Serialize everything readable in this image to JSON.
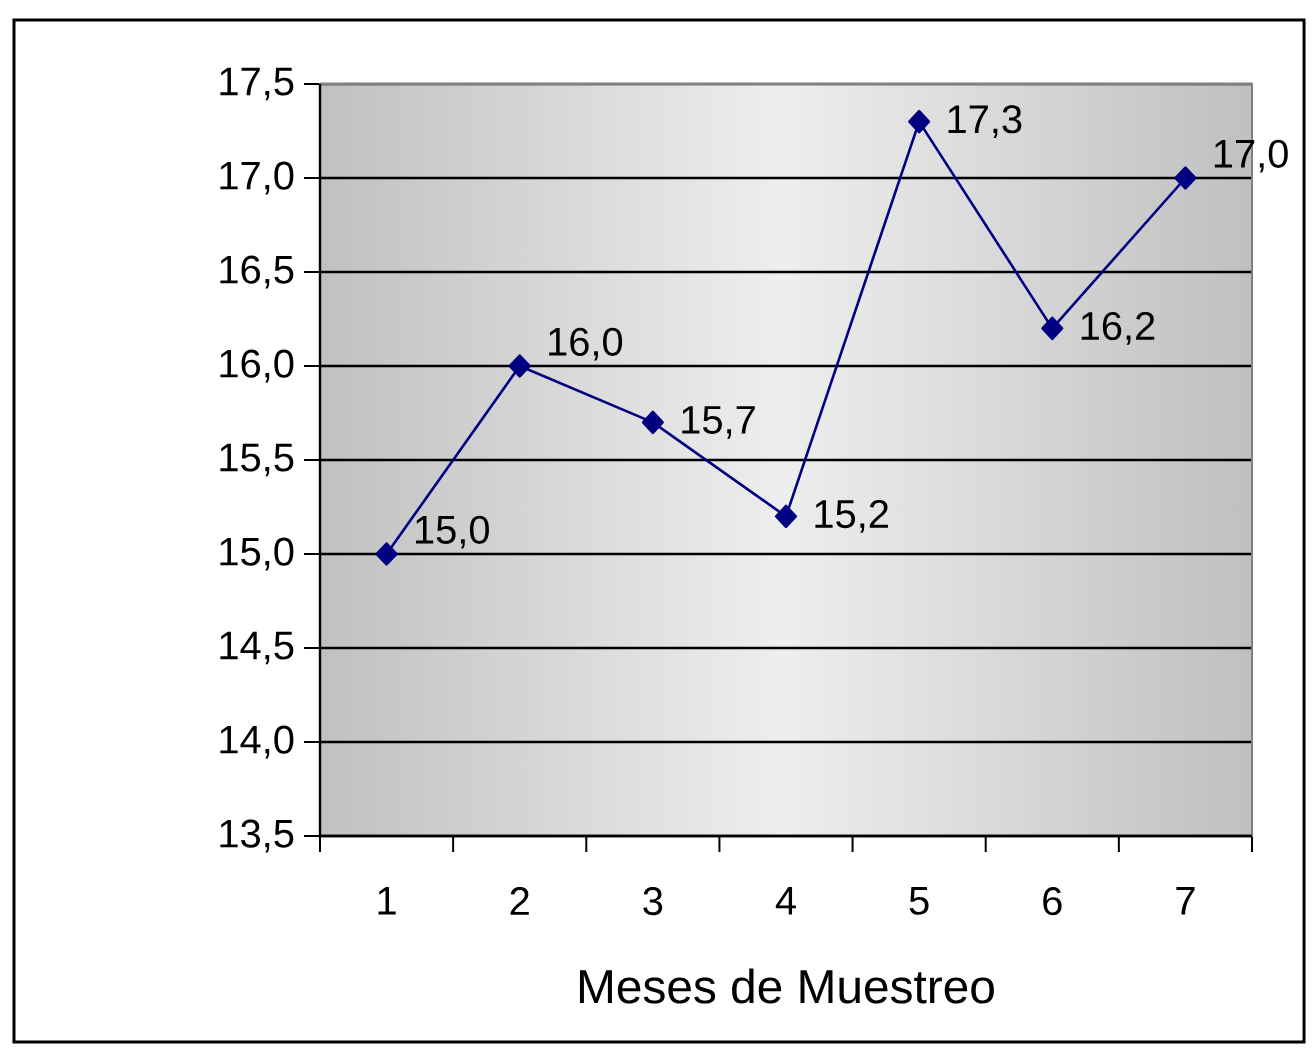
{
  "chart_data": {
    "type": "line",
    "xlabel": "Meses de Muestreo",
    "categories": [
      "1",
      "2",
      "3",
      "4",
      "5",
      "6",
      "7"
    ],
    "series": [
      {
        "color": "#000080",
        "values": [
          15.0,
          16.0,
          15.7,
          15.2,
          17.3,
          16.2,
          17.0
        ],
        "value_labels": [
          "15,0",
          "16,0",
          "15,7",
          "15,2",
          "17,3",
          "16,2",
          "17,0"
        ]
      }
    ],
    "ylim": [
      13.5,
      17.5
    ],
    "yticks": [
      {
        "value": 13.5,
        "label": "13,5"
      },
      {
        "value": 14.0,
        "label": "14,0"
      },
      {
        "value": 14.5,
        "label": "14,5"
      },
      {
        "value": 15.0,
        "label": "15,0"
      },
      {
        "value": 15.5,
        "label": "15,5"
      },
      {
        "value": 16.0,
        "label": "16,0"
      },
      {
        "value": 16.5,
        "label": "16,5"
      },
      {
        "value": 17.0,
        "label": "17,0"
      },
      {
        "value": 17.5,
        "label": "17,5"
      }
    ],
    "grid": "y",
    "marker": "diamond",
    "line_style": "solid"
  }
}
